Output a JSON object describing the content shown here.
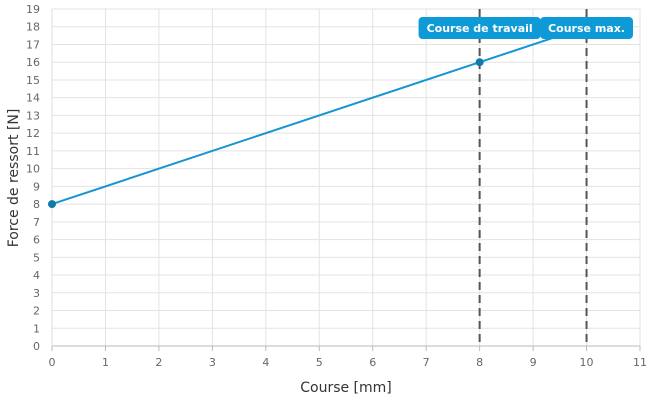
{
  "chart_data": {
    "type": "line",
    "xlabel": "Course [mm]",
    "ylabel": "Force de ressort [N]",
    "xlim": [
      0,
      11
    ],
    "ylim": [
      0,
      19
    ],
    "xticks": [
      "0",
      "1",
      "2",
      "3",
      "4",
      "5",
      "6",
      "7",
      "8",
      "9",
      "10",
      "11"
    ],
    "yticks": [
      "0",
      "1",
      "2",
      "3",
      "4",
      "5",
      "6",
      "7",
      "8",
      "9",
      "10",
      "11",
      "12",
      "13",
      "14",
      "15",
      "16",
      "17",
      "18",
      "19"
    ],
    "grid": true,
    "series": [
      {
        "color": "#1496d2",
        "x": [
          0,
          8,
          10
        ],
        "y": [
          8,
          16,
          18
        ],
        "markers": [
          [
            0,
            8
          ],
          [
            8,
            16
          ]
        ]
      }
    ],
    "annotations": [
      {
        "x": 8,
        "label": "Course de travail"
      },
      {
        "x": 10,
        "label": "Course max."
      }
    ],
    "colors": {
      "line": "#1496d2",
      "marker": "#117aa8",
      "annotation_bg": "#0e9ad6",
      "vline": "#555555"
    }
  }
}
